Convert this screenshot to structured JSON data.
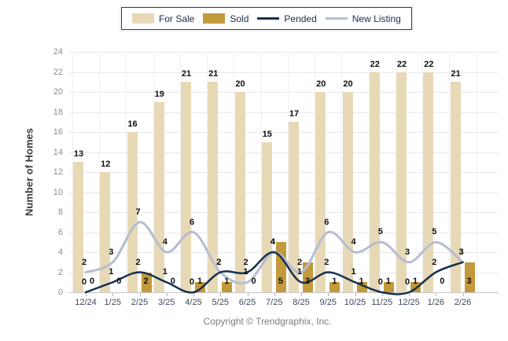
{
  "legend": {
    "items": [
      {
        "label": "For Sale",
        "swatch": "bar-swatch",
        "color": "#e8d9b6"
      },
      {
        "label": "Sold",
        "swatch": "bar-swatch",
        "color": "#c2993b"
      },
      {
        "label": "Pended",
        "swatch": "line-swatch",
        "color": "#17304d"
      },
      {
        "label": "New Listing",
        "swatch": "line-swatch",
        "color": "#b4bdd1"
      }
    ]
  },
  "chart_data": {
    "type": "combo",
    "categories": [
      "12/24",
      "1/25",
      "2/25",
      "3/25",
      "4/25",
      "5/25",
      "6/25",
      "7/25",
      "8/25",
      "9/25",
      "10/25",
      "11/25",
      "12/25",
      "1/26",
      "2/26"
    ],
    "series": [
      {
        "name": "For Sale",
        "type": "bar",
        "color": "#e8d9b6",
        "values": [
          13,
          12,
          16,
          19,
          21,
          21,
          20,
          15,
          17,
          20,
          20,
          22,
          22,
          22,
          21
        ]
      },
      {
        "name": "Sold",
        "type": "bar",
        "color": "#c2993b",
        "values": [
          0,
          0,
          2,
          0,
          1,
          1,
          0,
          5,
          3,
          1,
          1,
          1,
          1,
          0,
          3
        ]
      },
      {
        "name": "Pended",
        "type": "line",
        "color": "#17304d",
        "values": [
          0,
          1,
          2,
          1,
          0,
          2,
          2,
          4,
          1,
          2,
          1,
          0,
          0,
          2,
          3
        ]
      },
      {
        "name": "New Listing",
        "type": "line",
        "color": "#b4bdd1",
        "values": [
          2,
          3,
          7,
          4,
          6,
          2,
          1,
          4,
          2,
          6,
          4,
          5,
          3,
          5,
          3
        ]
      }
    ],
    "title": "",
    "xlabel": "",
    "ylabel": "Number of Homes",
    "ylim": [
      0,
      24
    ],
    "ytick_step": 2,
    "grid": true,
    "legend_position": "top",
    "value_labels": true
  },
  "footer": {
    "copyright": "Copyright © Trendgraphix, Inc."
  }
}
